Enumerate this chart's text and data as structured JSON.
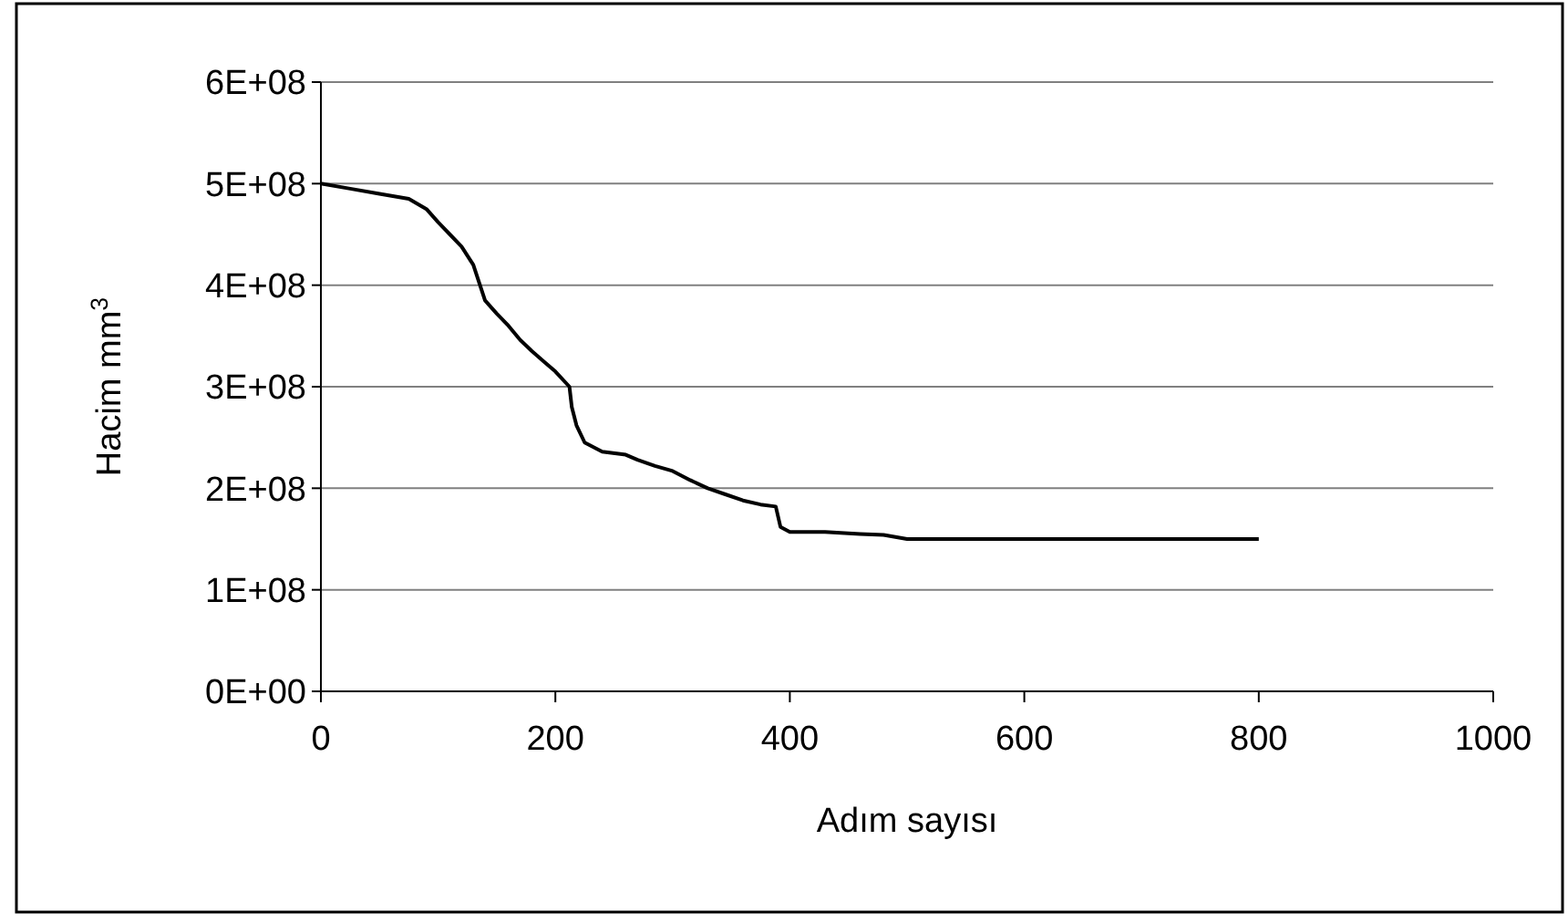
{
  "chart_data": {
    "type": "line",
    "xlabel": "Adım sayısı",
    "ylabel": "Hacim mm$^{3}$",
    "series": [
      {
        "color": "#000000",
        "x": [
          0,
          25,
          50,
          75,
          90,
          100,
          110,
          120,
          130,
          140,
          150,
          160,
          170,
          180,
          190,
          200,
          212,
          214,
          218,
          225,
          240,
          260,
          270,
          285,
          300,
          315,
          330,
          345,
          360,
          375,
          388,
          392,
          400,
          430,
          460,
          480,
          500,
          550,
          600,
          700,
          800
        ],
        "values": [
          500000000,
          495000000,
          490000000,
          485000000,
          475000000,
          462000000,
          450000000,
          438000000,
          420000000,
          385000000,
          372000000,
          360000000,
          346000000,
          335000000,
          325000000,
          315000000,
          300000000,
          280000000,
          262000000,
          245000000,
          236000000,
          233000000,
          228000000,
          222000000,
          217000000,
          208000000,
          200000000,
          194000000,
          188000000,
          184000000,
          182000000,
          162000000,
          157000000,
          157000000,
          155000000,
          154000000,
          150000000,
          150000000,
          150000000,
          150000000,
          150000000
        ]
      }
    ],
    "xlim": [
      0,
      1000
    ],
    "xticks": [
      0,
      200,
      400,
      600,
      800,
      1000
    ],
    "ylim": [
      0,
      600000000
    ],
    "yticks": [
      {
        "value": 0,
        "label": "0E+00"
      },
      {
        "value": 100000000,
        "label": "1E+08"
      },
      {
        "value": 200000000,
        "label": "2E+08"
      },
      {
        "value": 300000000,
        "label": "3E+08"
      },
      {
        "value": 400000000,
        "label": "4E+08"
      },
      {
        "value": 500000000,
        "label": "5E+08"
      },
      {
        "value": 600000000,
        "label": "6E+08"
      }
    ],
    "grid": "y",
    "marker": "none",
    "line_style": "solid"
  }
}
